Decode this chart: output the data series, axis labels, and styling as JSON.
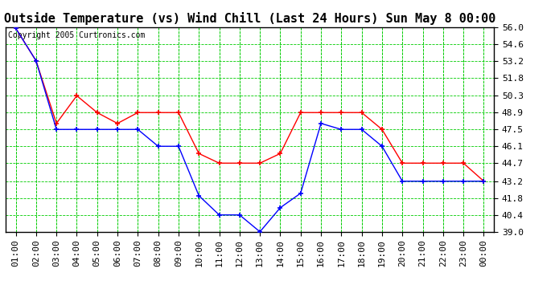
{
  "title": "Outside Temperature (vs) Wind Chill (Last 24 Hours) Sun May 8 00:00",
  "copyright_text": "Copyright 2005 Curtronics.com",
  "x_labels": [
    "01:00",
    "02:00",
    "03:00",
    "04:00",
    "05:00",
    "06:00",
    "07:00",
    "08:00",
    "09:00",
    "10:00",
    "11:00",
    "12:00",
    "13:00",
    "14:00",
    "15:00",
    "16:00",
    "17:00",
    "18:00",
    "19:00",
    "20:00",
    "21:00",
    "22:00",
    "23:00",
    "00:00"
  ],
  "blue_data": [
    55.9,
    53.2,
    47.5,
    47.5,
    47.5,
    47.5,
    47.5,
    46.1,
    46.1,
    42.0,
    40.4,
    40.4,
    39.0,
    41.0,
    42.2,
    48.0,
    47.5,
    47.5,
    46.1,
    43.2,
    43.2,
    43.2,
    43.2,
    43.2
  ],
  "red_data": [
    55.9,
    53.2,
    48.0,
    50.3,
    48.9,
    48.0,
    48.9,
    48.9,
    48.9,
    45.5,
    44.7,
    44.7,
    44.7,
    45.5,
    48.9,
    48.9,
    48.9,
    48.9,
    47.5,
    44.7,
    44.7,
    44.7,
    44.7,
    43.2
  ],
  "ylim": [
    39.0,
    56.0
  ],
  "yticks": [
    39.0,
    40.4,
    41.8,
    43.2,
    44.7,
    46.1,
    47.5,
    48.9,
    50.3,
    51.8,
    53.2,
    54.6,
    56.0
  ],
  "bg_color": "#ffffff",
  "plot_bg_color": "#ffffff",
  "blue_color": "#0000ff",
  "red_color": "#ff0000",
  "grid_color": "#00cc00",
  "title_fontsize": 11,
  "tick_fontsize": 8,
  "copyright_fontsize": 7
}
